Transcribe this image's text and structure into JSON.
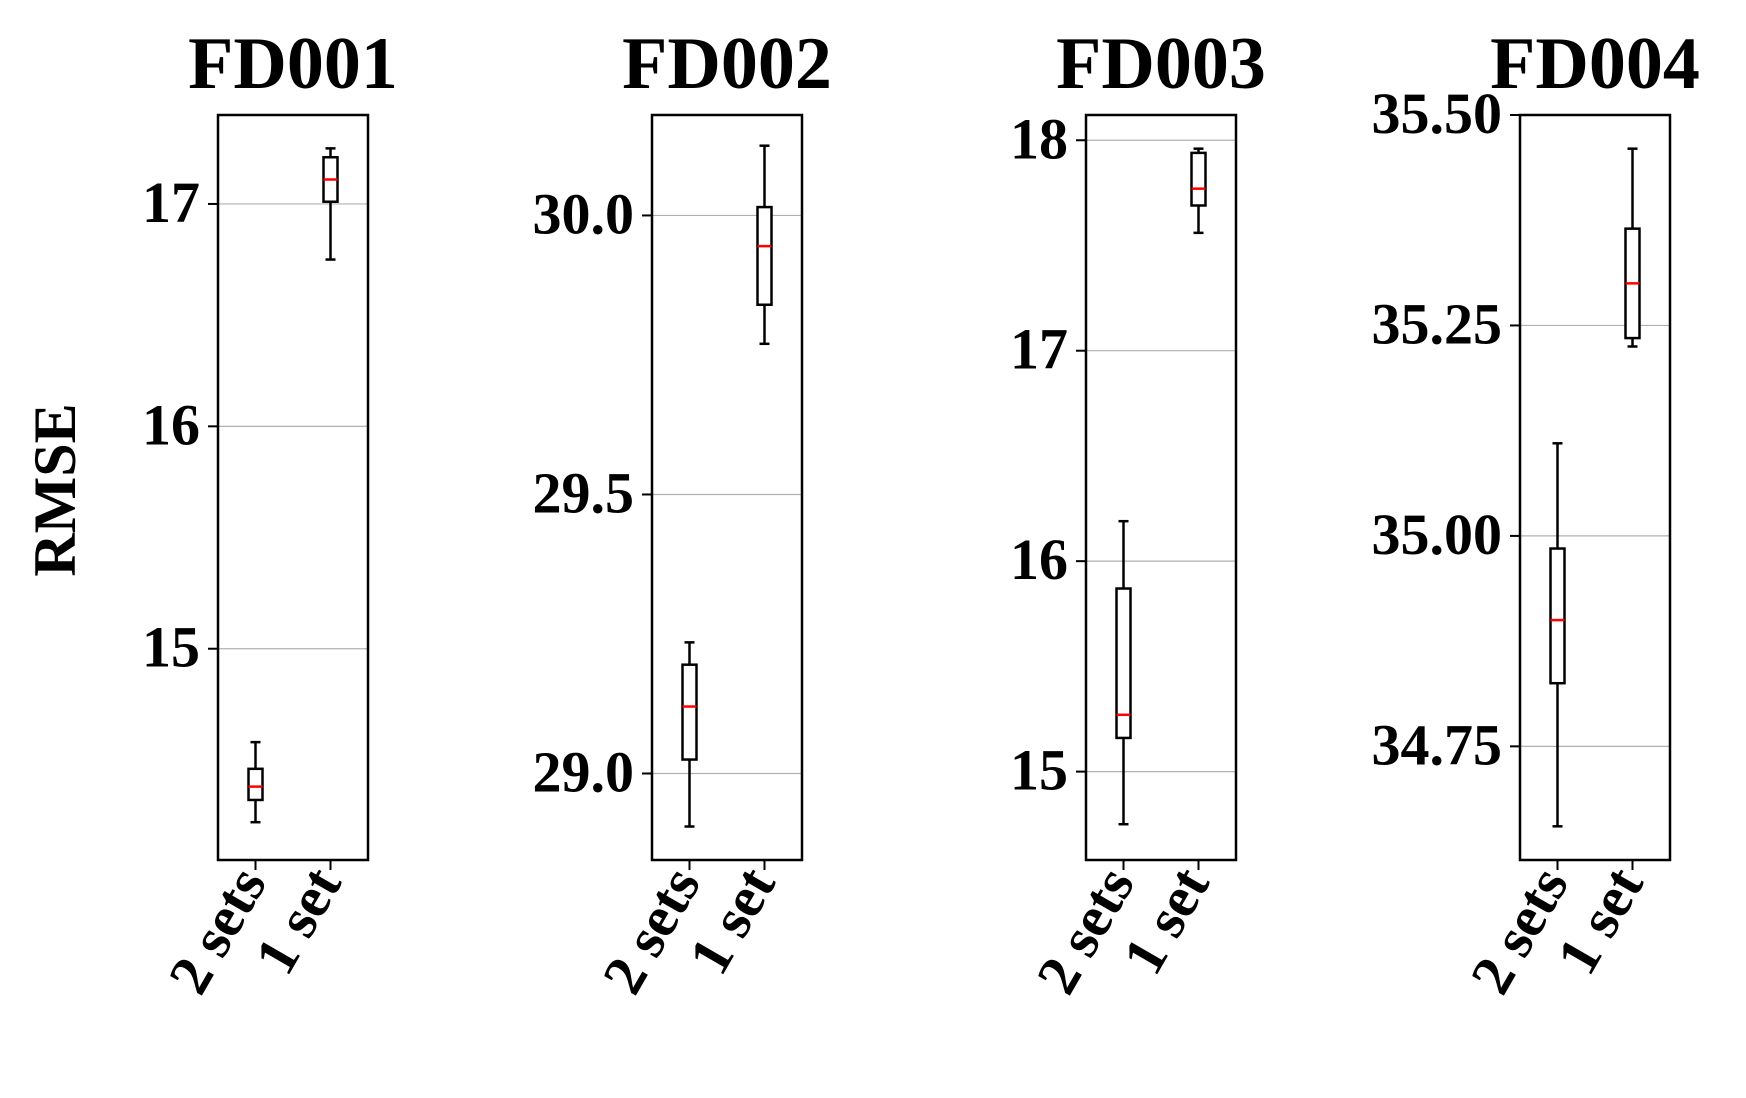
{
  "ylabel": "RMSE",
  "colors": {
    "median": "#ff0000",
    "box": "#000000",
    "grid": "#b0b0b0"
  },
  "chart_data": [
    {
      "type": "box",
      "title": "FD001",
      "categories": [
        "2 sets",
        "1 set"
      ],
      "ylim": [
        14.05,
        17.4
      ],
      "yticks": [
        15,
        16,
        17
      ],
      "ytick_labels": [
        "15",
        "16",
        "17"
      ],
      "grid": "y",
      "boxes": [
        {
          "label": "2 sets",
          "whislo": 14.22,
          "q1": 14.32,
          "median": 14.38,
          "q3": 14.46,
          "whishi": 14.58
        },
        {
          "label": "1 set",
          "whislo": 16.75,
          "q1": 17.01,
          "median": 17.11,
          "q3": 17.21,
          "whishi": 17.25
        }
      ]
    },
    {
      "type": "box",
      "title": "FD002",
      "categories": [
        "2 sets",
        "1 set"
      ],
      "ylim": [
        28.845,
        30.18
      ],
      "yticks": [
        29.0,
        29.5,
        30.0
      ],
      "ytick_labels": [
        "29.0",
        "29.5",
        "30.0"
      ],
      "grid": "y",
      "boxes": [
        {
          "label": "2 sets",
          "whislo": 28.905,
          "q1": 29.025,
          "median": 29.12,
          "q3": 29.195,
          "whishi": 29.235
        },
        {
          "label": "1 set",
          "whislo": 29.77,
          "q1": 29.84,
          "median": 29.945,
          "q3": 30.015,
          "whishi": 30.125
        }
      ]
    },
    {
      "type": "box",
      "title": "FD003",
      "categories": [
        "2 sets",
        "1 set"
      ],
      "ylim": [
        14.58,
        18.12
      ],
      "yticks": [
        15,
        16,
        17,
        18
      ],
      "ytick_labels": [
        "15",
        "16",
        "17",
        "18"
      ],
      "grid": "y",
      "boxes": [
        {
          "label": "2 sets",
          "whislo": 14.75,
          "q1": 15.16,
          "median": 15.27,
          "q3": 15.87,
          "whishi": 16.19
        },
        {
          "label": "1 set",
          "whislo": 17.56,
          "q1": 17.69,
          "median": 17.77,
          "q3": 17.94,
          "whishi": 17.96
        }
      ]
    },
    {
      "type": "box",
      "title": "FD004",
      "categories": [
        "2 sets",
        "1 set"
      ],
      "ylim": [
        34.615,
        35.5
      ],
      "yticks": [
        34.75,
        35.0,
        35.25,
        35.5
      ],
      "ytick_labels": [
        "34.75",
        "35.00",
        "35.25",
        "35.50"
      ],
      "grid": "y",
      "boxes": [
        {
          "label": "2 sets",
          "whislo": 34.655,
          "q1": 34.825,
          "median": 34.9,
          "q3": 34.985,
          "whishi": 35.11
        },
        {
          "label": "1 set",
          "whislo": 35.225,
          "q1": 35.235,
          "median": 35.3,
          "q3": 35.365,
          "whishi": 35.46
        }
      ]
    }
  ]
}
